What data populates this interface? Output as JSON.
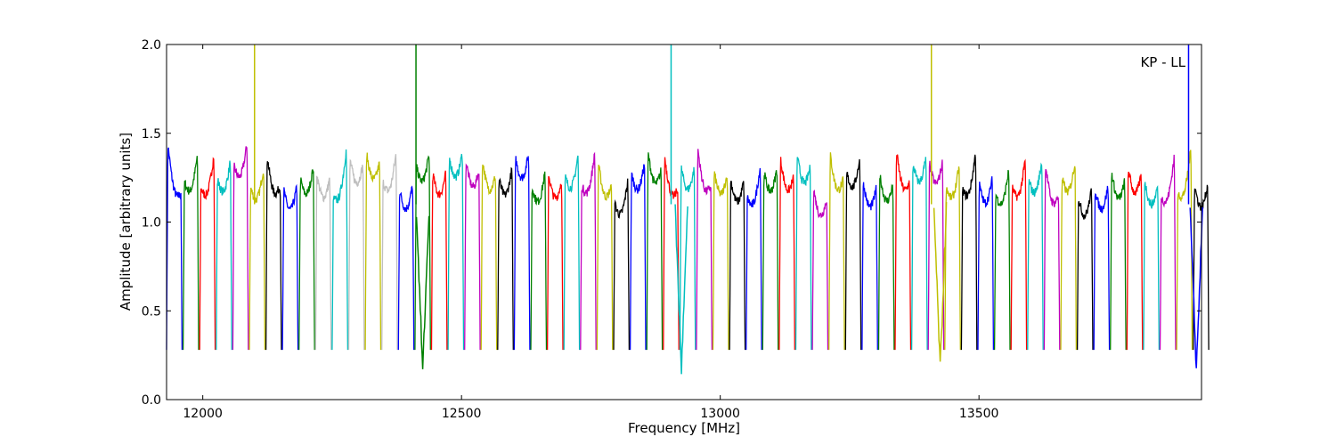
{
  "chart_data": {
    "type": "line",
    "title": "",
    "annotation": "KP - LL",
    "xlabel": "Frequency [MHz]",
    "ylabel": "Amplitude [arbitrary units]",
    "xlim": [
      11930,
      13930
    ],
    "ylim": [
      0.0,
      2.0
    ],
    "x_ticks": [
      12000,
      12500,
      13000,
      13500
    ],
    "x_tick_labels": [
      "12000",
      "12500",
      "13000",
      "13500"
    ],
    "y_ticks": [
      0.0,
      0.5,
      1.0,
      1.5,
      2.0
    ],
    "y_tick_labels": [
      "0.0",
      "0.5",
      "1.0",
      "1.5",
      "2.0"
    ],
    "grid": false,
    "legend": "none",
    "color_cycle": [
      "#0000ff",
      "#008000",
      "#ff0000",
      "#00bfbf",
      "#bf00bf",
      "#bfbf00",
      "#000000"
    ],
    "highlight_color": "#bfbfbf",
    "channels": {
      "start_mhz": 11930,
      "width_mhz": 32,
      "count": 63,
      "in_band_level": 1.2,
      "edge_level": 0.28
    },
    "spikes": [
      {
        "x": 12100,
        "peak": 2.0,
        "color": "#bfbf00"
      },
      {
        "x": 12412,
        "peak": 2.0,
        "color": "#008000"
      },
      {
        "x": 12905,
        "peak": 2.0,
        "color": "#00bfbf"
      },
      {
        "x": 13408,
        "peak": 2.0,
        "color": "#bfbf00"
      },
      {
        "x": 13905,
        "peak": 2.0,
        "color": "#0000ff"
      }
    ],
    "dips": [
      {
        "x": 12425,
        "min": 0.16,
        "color": "#008000"
      },
      {
        "x": 12925,
        "min": 0.17,
        "color": "#00bfbf"
      },
      {
        "x": 13425,
        "min": 0.18,
        "color": "#bfbf00"
      },
      {
        "x": 13920,
        "min": 0.17,
        "color": "#0000ff"
      }
    ]
  }
}
